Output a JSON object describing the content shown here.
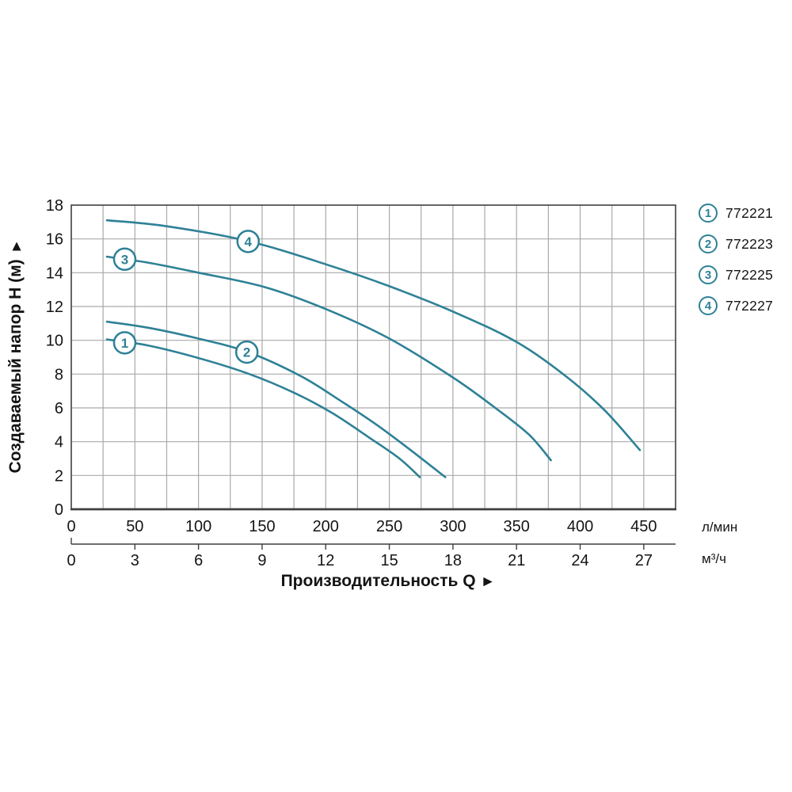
{
  "chart_data": {
    "type": "line",
    "description": "Pump performance curves: head H versus flow Q",
    "y_axis": {
      "title": "Создаваемый напор H (м)",
      "title_arrow": "▲",
      "ticks": [
        0,
        2,
        4,
        6,
        8,
        10,
        12,
        14,
        16,
        18
      ],
      "range": [
        0,
        18
      ],
      "grid_step": 2
    },
    "x_axis": {
      "title": "Производительность Q",
      "title_arrow": "►",
      "primary": {
        "unit": "л/мин",
        "ticks": [
          0,
          50,
          100,
          150,
          200,
          250,
          300,
          350,
          400,
          450
        ]
      },
      "secondary": {
        "unit": "м³/ч",
        "ticks": [
          0,
          3,
          6,
          9,
          12,
          15,
          18,
          21,
          24,
          27
        ]
      },
      "range_lmin": [
        0,
        475
      ],
      "minor_grid_step_lmin": 25
    },
    "series": [
      {
        "id": "1",
        "model": "772221",
        "badge_at": [
          42,
          9.85
        ],
        "points": [
          [
            28,
            10.05
          ],
          [
            60,
            9.7
          ],
          [
            100,
            8.95
          ],
          [
            140,
            8.0
          ],
          [
            175,
            6.9
          ],
          [
            205,
            5.7
          ],
          [
            235,
            4.2
          ],
          [
            258,
            3.0
          ],
          [
            274,
            1.9
          ]
        ]
      },
      {
        "id": "2",
        "model": "772223",
        "badge_at": [
          138,
          9.3
        ],
        "points": [
          [
            28,
            11.1
          ],
          [
            60,
            10.75
          ],
          [
            100,
            10.1
          ],
          [
            139,
            9.3
          ],
          [
            180,
            7.9
          ],
          [
            210,
            6.5
          ],
          [
            240,
            5.0
          ],
          [
            265,
            3.6
          ],
          [
            294,
            1.9
          ]
        ]
      },
      {
        "id": "3",
        "model": "772225",
        "badge_at": [
          42,
          14.8
        ],
        "points": [
          [
            28,
            14.95
          ],
          [
            60,
            14.6
          ],
          [
            100,
            14.0
          ],
          [
            152,
            13.15
          ],
          [
            200,
            11.85
          ],
          [
            250,
            10.1
          ],
          [
            300,
            7.8
          ],
          [
            335,
            5.9
          ],
          [
            360,
            4.4
          ],
          [
            377,
            2.9
          ]
        ]
      },
      {
        "id": "4",
        "model": "772227",
        "badge_at": [
          139,
          15.85
        ],
        "points": [
          [
            28,
            17.1
          ],
          [
            75,
            16.75
          ],
          [
            140,
            15.85
          ],
          [
            200,
            14.5
          ],
          [
            250,
            13.2
          ],
          [
            300,
            11.7
          ],
          [
            350,
            9.9
          ],
          [
            390,
            7.8
          ],
          [
            420,
            5.8
          ],
          [
            447,
            3.5
          ]
        ]
      }
    ],
    "legend_position": "top-right-outside",
    "grid": true,
    "colors": {
      "curve": "#2e8196",
      "grid": "#a9a9a9",
      "axis": "#3f3f3f",
      "text": "#141414",
      "badge_fill": "#ffffff"
    }
  }
}
